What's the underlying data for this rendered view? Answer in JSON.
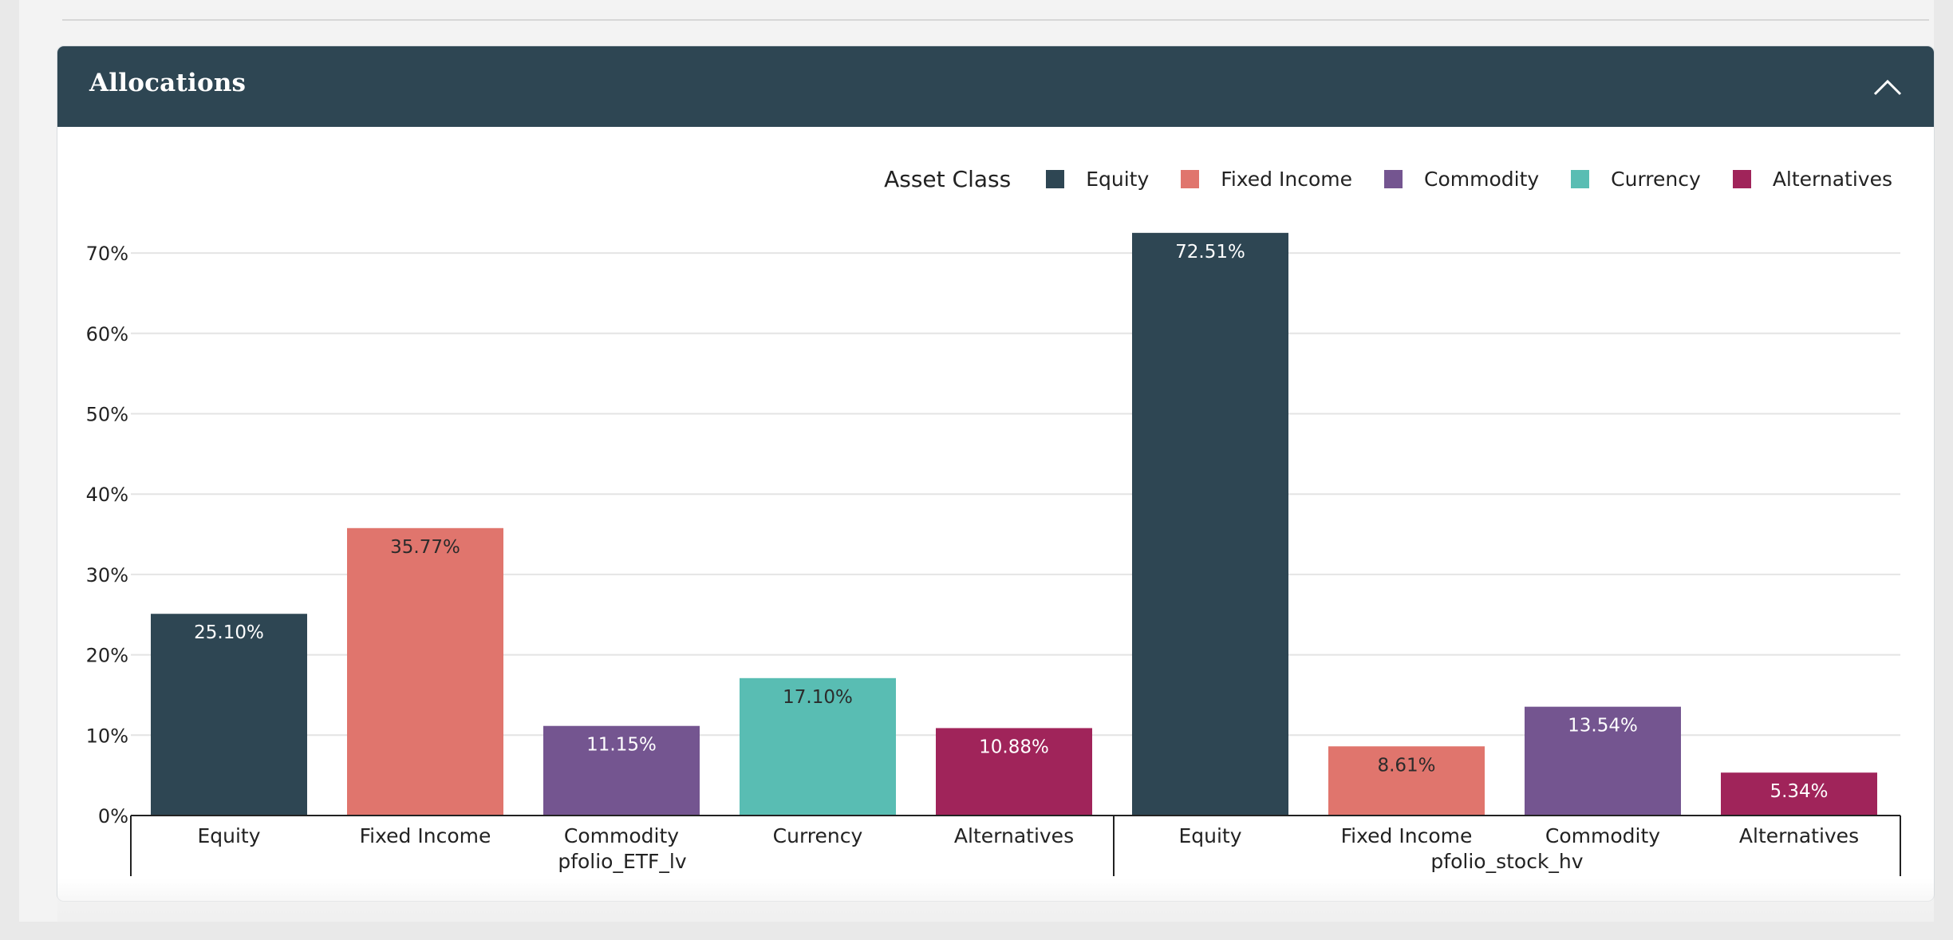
{
  "panel": {
    "title": "Allocations",
    "collapse_icon": "chevron-up-icon"
  },
  "legend": {
    "title": "Asset Class",
    "items": [
      {
        "label": "Equity",
        "color": "#2e4653"
      },
      {
        "label": "Fixed Income",
        "color": "#e0756d"
      },
      {
        "label": "Commodity",
        "color": "#745590"
      },
      {
        "label": "Currency",
        "color": "#59bdb3"
      },
      {
        "label": "Alternatives",
        "color": "#a0245a"
      }
    ]
  },
  "chart_data": {
    "type": "bar",
    "title": "",
    "xlabel": "",
    "ylabel": "",
    "ylim": [
      0,
      72.51
    ],
    "yticks": [
      "0%",
      "10%",
      "20%",
      "30%",
      "40%",
      "50%",
      "60%",
      "70%"
    ],
    "ytick_values": [
      0,
      10,
      20,
      30,
      40,
      50,
      60,
      70
    ],
    "grid": true,
    "legend_position": "top-right",
    "groups": [
      {
        "name": "pfolio_ETF_lv",
        "bars": [
          {
            "category": "Equity",
            "value": 25.1,
            "label": "25.10%",
            "color": "#2e4653",
            "label_color": "#ffffff"
          },
          {
            "category": "Fixed Income",
            "value": 35.77,
            "label": "35.77%",
            "color": "#e0756d",
            "label_color": "#2b2b2b"
          },
          {
            "category": "Commodity",
            "value": 11.15,
            "label": "11.15%",
            "color": "#745590",
            "label_color": "#ffffff"
          },
          {
            "category": "Currency",
            "value": 17.1,
            "label": "17.10%",
            "color": "#59bdb3",
            "label_color": "#2b2b2b"
          },
          {
            "category": "Alternatives",
            "value": 10.88,
            "label": "10.88%",
            "color": "#a0245a",
            "label_color": "#ffffff"
          }
        ]
      },
      {
        "name": "pfolio_stock_hv",
        "bars": [
          {
            "category": "Equity",
            "value": 72.51,
            "label": "72.51%",
            "color": "#2e4653",
            "label_color": "#ffffff"
          },
          {
            "category": "Fixed Income",
            "value": 8.61,
            "label": "8.61%",
            "color": "#e0756d",
            "label_color": "#2b2b2b"
          },
          {
            "category": "Commodity",
            "value": 13.54,
            "label": "13.54%",
            "color": "#745590",
            "label_color": "#ffffff"
          },
          {
            "category": "Alternatives",
            "value": 5.34,
            "label": "5.34%",
            "color": "#a0245a",
            "label_color": "#ffffff"
          }
        ]
      }
    ]
  }
}
